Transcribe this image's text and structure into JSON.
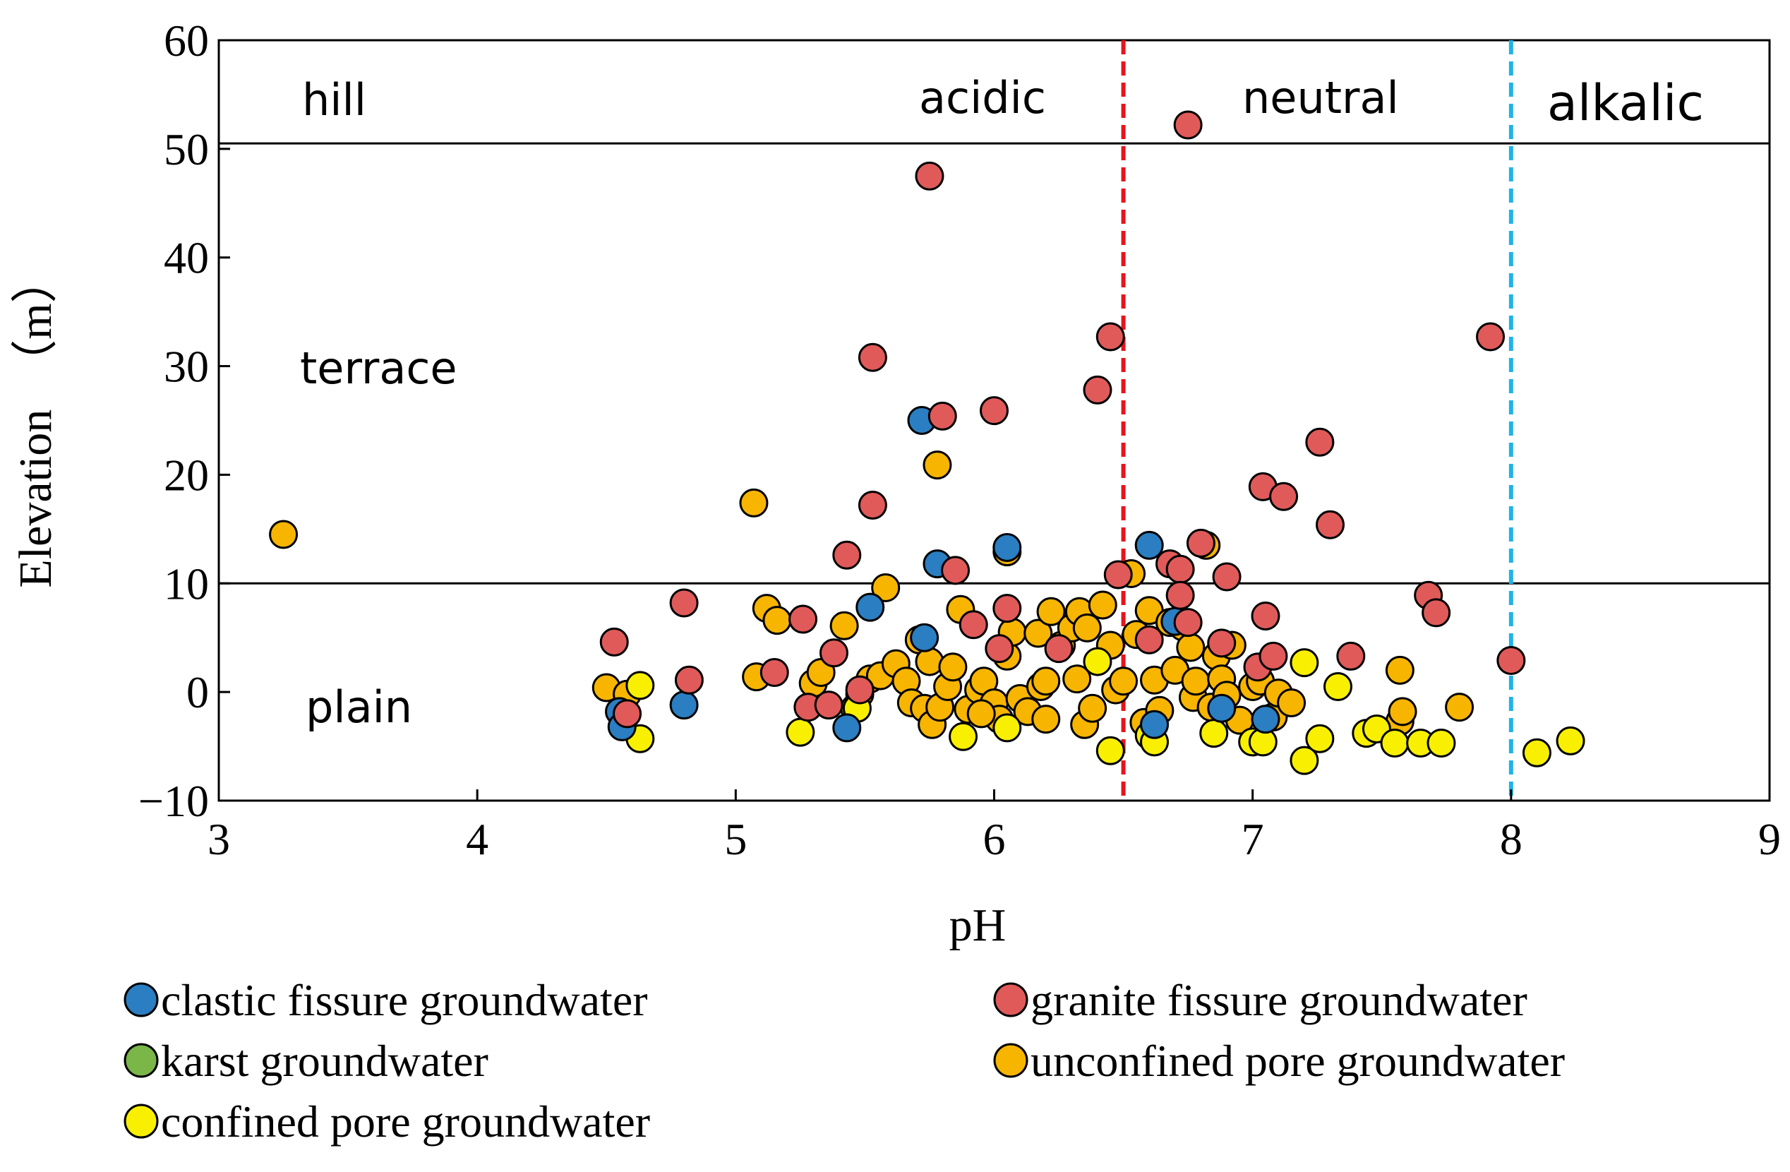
{
  "chart_data": {
    "type": "scatter",
    "xlabel": "pH",
    "ylabel": "Elevation　（m）",
    "xlim": [
      3,
      9
    ],
    "ylim": [
      -10,
      60
    ],
    "xticks": [
      "3",
      "4",
      "5",
      "6",
      "7",
      "8",
      "9"
    ],
    "yticks": [
      "−10",
      "0",
      "10",
      "20",
      "30",
      "40",
      "50",
      "60"
    ],
    "zones": {
      "elevation": [
        {
          "label": "hill"
        },
        {
          "label": "terrace"
        },
        {
          "label": "plain"
        }
      ],
      "ph": [
        {
          "label": "acidic"
        },
        {
          "label": "neutral"
        },
        {
          "label": "alkalic"
        }
      ]
    },
    "boundaries": {
      "horizontal": [
        10,
        50.5
      ],
      "vertical": [
        {
          "x": 6.5,
          "color": "#e8141b"
        },
        {
          "x": 8.0,
          "color": "#1fb3e8"
        }
      ]
    },
    "series": [
      {
        "name": "clastic fissure groundwater",
        "color": "#2a7ec1",
        "points": [
          [
            4.55,
            -1.8
          ],
          [
            4.56,
            -3.2
          ],
          [
            4.8,
            -1.2
          ],
          [
            5.43,
            -3.3
          ],
          [
            5.52,
            7.8
          ],
          [
            5.72,
            25.0
          ],
          [
            5.73,
            5.0
          ],
          [
            5.78,
            11.8
          ],
          [
            6.05,
            13.3
          ],
          [
            6.6,
            13.5
          ],
          [
            6.62,
            -3.0
          ],
          [
            6.7,
            6.5
          ],
          [
            6.88,
            -1.5
          ],
          [
            7.05,
            -2.5
          ]
        ]
      },
      {
        "name": "granite fissure groundwater",
        "color": "#e05a5a",
        "points": [
          [
            4.53,
            4.6
          ],
          [
            4.58,
            -2.0
          ],
          [
            4.8,
            8.2
          ],
          [
            4.82,
            1.1
          ],
          [
            5.15,
            1.8
          ],
          [
            5.26,
            6.7
          ],
          [
            5.28,
            -1.4
          ],
          [
            5.36,
            -1.2
          ],
          [
            5.38,
            3.6
          ],
          [
            5.43,
            12.6
          ],
          [
            5.48,
            0.2
          ],
          [
            5.53,
            30.8
          ],
          [
            5.53,
            17.2
          ],
          [
            5.75,
            47.5
          ],
          [
            5.8,
            25.4
          ],
          [
            5.85,
            11.2
          ],
          [
            5.92,
            6.2
          ],
          [
            6.0,
            25.9
          ],
          [
            6.02,
            4.0
          ],
          [
            6.05,
            7.7
          ],
          [
            6.25,
            4.0
          ],
          [
            6.4,
            27.8
          ],
          [
            6.45,
            32.7
          ],
          [
            6.48,
            10.8
          ],
          [
            6.68,
            11.8
          ],
          [
            6.72,
            11.3
          ],
          [
            6.72,
            8.9
          ],
          [
            6.75,
            6.4
          ],
          [
            6.8,
            13.7
          ],
          [
            6.88,
            4.5
          ],
          [
            6.9,
            10.6
          ],
          [
            7.02,
            2.3
          ],
          [
            7.04,
            18.9
          ],
          [
            7.05,
            7.0
          ],
          [
            7.08,
            3.3
          ],
          [
            7.12,
            18.0
          ],
          [
            7.26,
            23.0
          ],
          [
            7.3,
            15.4
          ],
          [
            7.38,
            3.3
          ],
          [
            7.68,
            8.9
          ],
          [
            7.71,
            7.3
          ],
          [
            7.92,
            32.7
          ],
          [
            8.0,
            2.9
          ],
          [
            6.75,
            52.2
          ],
          [
            6.6,
            4.8
          ]
        ]
      },
      {
        "name": "karst groundwater",
        "color": "#7ab648",
        "points": []
      },
      {
        "name": "unconfined pore groundwater",
        "color": "#f7b500",
        "points": [
          [
            3.25,
            14.5
          ],
          [
            4.5,
            0.4
          ],
          [
            4.58,
            -0.2
          ],
          [
            5.07,
            17.4
          ],
          [
            5.08,
            1.4
          ],
          [
            5.12,
            7.7
          ],
          [
            5.16,
            6.6
          ],
          [
            5.3,
            0.8
          ],
          [
            5.33,
            1.8
          ],
          [
            5.42,
            6.1
          ],
          [
            5.46,
            -1.5
          ],
          [
            5.48,
            -0.2
          ],
          [
            5.52,
            1.2
          ],
          [
            5.56,
            1.5
          ],
          [
            5.58,
            9.6
          ],
          [
            5.62,
            2.6
          ],
          [
            5.66,
            1.0
          ],
          [
            5.68,
            -1.0
          ],
          [
            5.71,
            4.8
          ],
          [
            5.73,
            -1.5
          ],
          [
            5.75,
            2.8
          ],
          [
            5.76,
            -3.0
          ],
          [
            5.78,
            20.9
          ],
          [
            5.79,
            -1.4
          ],
          [
            5.82,
            0.5
          ],
          [
            5.84,
            2.3
          ],
          [
            5.87,
            7.6
          ],
          [
            5.9,
            -1.6
          ],
          [
            5.94,
            0.2
          ],
          [
            5.96,
            1.0
          ],
          [
            6.0,
            -1.0
          ],
          [
            6.02,
            -2.5
          ],
          [
            6.05,
            3.3
          ],
          [
            6.05,
            12.9
          ],
          [
            6.07,
            5.5
          ],
          [
            6.1,
            -0.6
          ],
          [
            6.13,
            -1.8
          ],
          [
            6.17,
            5.4
          ],
          [
            6.18,
            0.5
          ],
          [
            6.2,
            -2.5
          ],
          [
            6.22,
            7.4
          ],
          [
            6.26,
            4.3
          ],
          [
            6.3,
            5.9
          ],
          [
            6.32,
            1.2
          ],
          [
            6.33,
            7.4
          ],
          [
            6.35,
            -3.0
          ],
          [
            6.36,
            5.9
          ],
          [
            6.38,
            -1.5
          ],
          [
            6.42,
            8.0
          ],
          [
            6.45,
            4.3
          ],
          [
            6.47,
            0.2
          ],
          [
            6.5,
            1.0
          ],
          [
            6.53,
            10.9
          ],
          [
            6.55,
            5.3
          ],
          [
            6.58,
            -2.8
          ],
          [
            6.6,
            7.5
          ],
          [
            6.62,
            1.1
          ],
          [
            6.64,
            -1.7
          ],
          [
            6.68,
            6.4
          ],
          [
            6.7,
            2.0
          ],
          [
            6.73,
            6.0
          ],
          [
            6.76,
            4.1
          ],
          [
            6.77,
            -0.5
          ],
          [
            6.78,
            1.0
          ],
          [
            6.82,
            13.5
          ],
          [
            6.84,
            -1.4
          ],
          [
            6.86,
            3.3
          ],
          [
            6.88,
            1.2
          ],
          [
            6.9,
            -0.3
          ],
          [
            6.92,
            4.3
          ],
          [
            6.95,
            -2.6
          ],
          [
            7.0,
            0.5
          ],
          [
            7.03,
            1.0
          ],
          [
            7.08,
            -2.3
          ],
          [
            7.1,
            -0.1
          ],
          [
            7.15,
            -1.0
          ],
          [
            7.57,
            -2.7
          ],
          [
            7.57,
            2.0
          ],
          [
            7.58,
            -1.8
          ],
          [
            7.8,
            -1.4
          ],
          [
            5.95,
            -2.0
          ],
          [
            6.2,
            1.0
          ]
        ]
      },
      {
        "name": "confined pore groundwater",
        "color": "#f8f000",
        "points": [
          [
            4.63,
            -4.3
          ],
          [
            4.63,
            0.6
          ],
          [
            5.25,
            -3.7
          ],
          [
            5.47,
            -1.5
          ],
          [
            5.88,
            -4.1
          ],
          [
            6.05,
            -3.3
          ],
          [
            6.4,
            2.8
          ],
          [
            6.45,
            -5.4
          ],
          [
            6.6,
            -4.0
          ],
          [
            6.62,
            -4.6
          ],
          [
            6.85,
            -3.8
          ],
          [
            7.0,
            -4.6
          ],
          [
            7.04,
            -4.6
          ],
          [
            7.2,
            2.7
          ],
          [
            7.2,
            -6.3
          ],
          [
            7.26,
            -4.3
          ],
          [
            7.33,
            0.5
          ],
          [
            7.44,
            -3.8
          ],
          [
            7.48,
            -3.4
          ],
          [
            7.55,
            -4.7
          ],
          [
            7.65,
            -4.7
          ],
          [
            7.73,
            -4.7
          ],
          [
            8.1,
            -5.6
          ],
          [
            8.23,
            -4.5
          ]
        ]
      }
    ],
    "legend": {
      "position": "bottom",
      "entries": [
        "clastic fissure groundwater",
        "granite fissure groundwater",
        "karst groundwater",
        "unconfined pore groundwater",
        "confined pore groundwater"
      ]
    }
  }
}
